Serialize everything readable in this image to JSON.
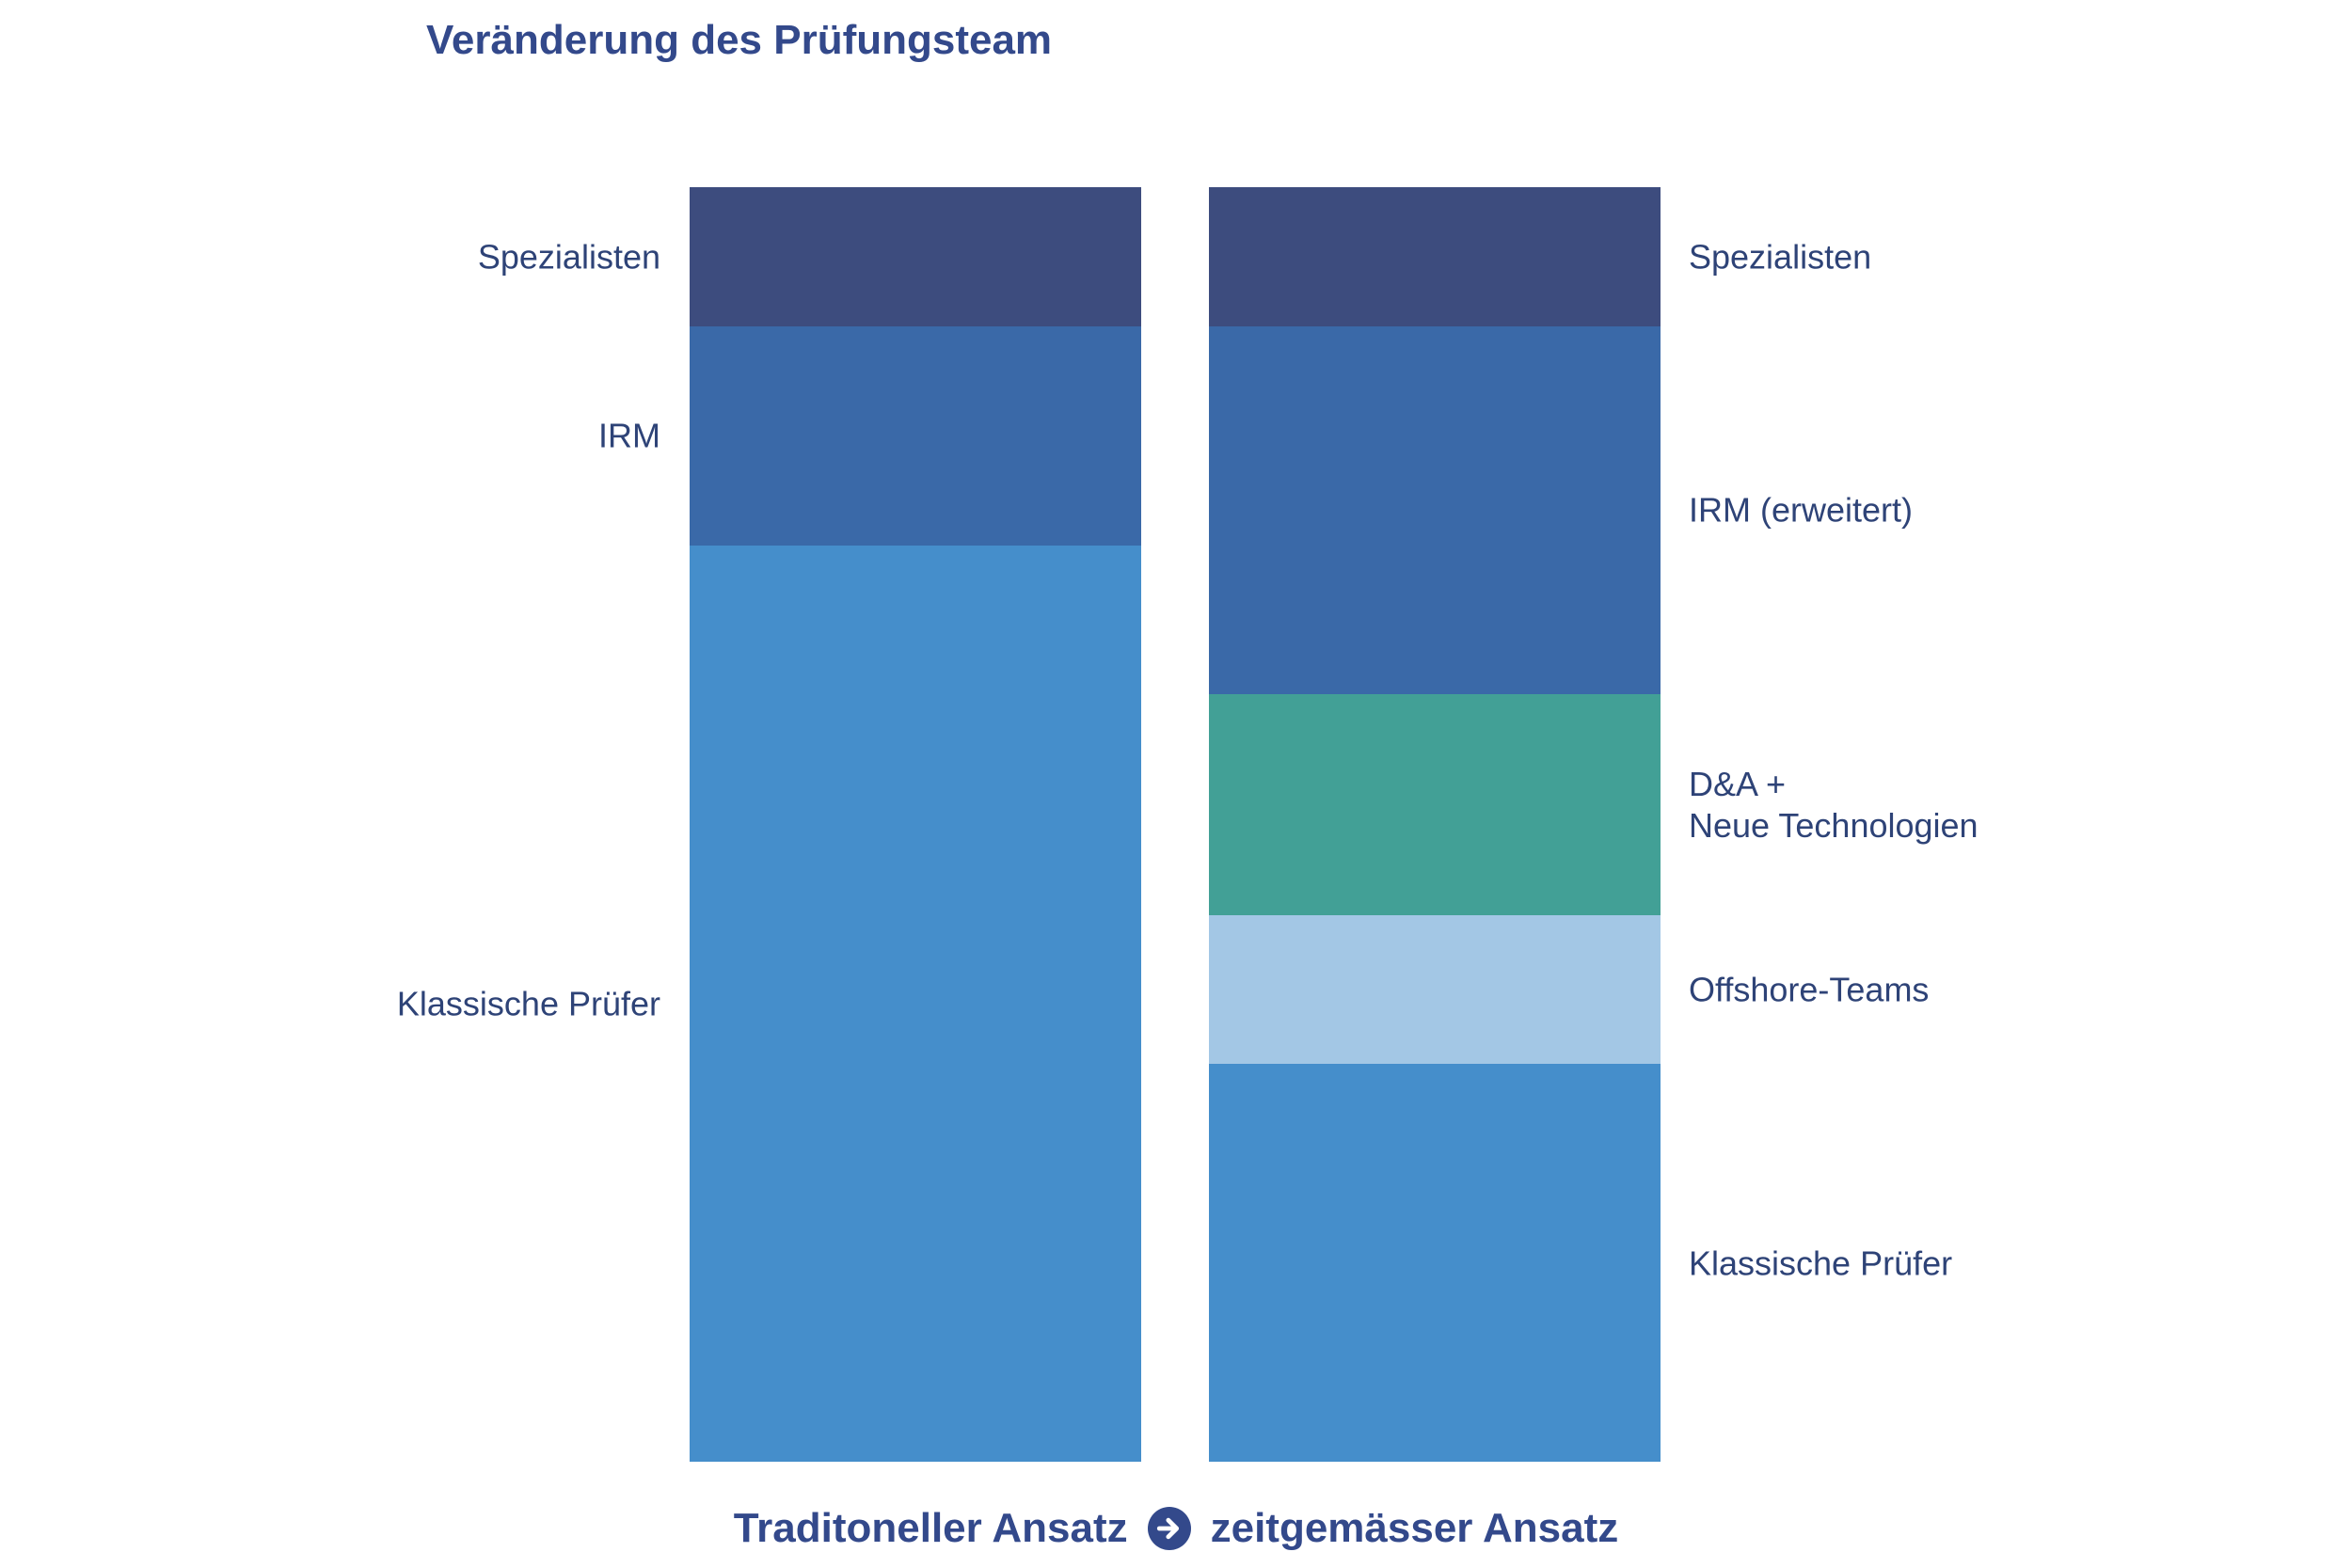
{
  "title": "Veränderung des Prüfungsteam",
  "caption": {
    "left_text": "Traditoneller Ansatz",
    "right_text": "zeitgemässer Ansatz",
    "arrow_icon": "circled-right-arrow"
  },
  "colors": {
    "background": "#FFFFFF",
    "title_text": "#33498B",
    "label_text": "#2E4377",
    "icon_circle": "#33498B",
    "icon_arrow": "#FFFFFF",
    "segment_dark_navy": "#3D4C7E",
    "segment_medium_blue": "#3A69A8",
    "segment_light_blue": "#458ECB",
    "segment_green": "#42A096",
    "segment_pale_blue": "#A3C7E5"
  },
  "chart_data": {
    "type": "bar",
    "subtype": "stacked-100-percent-columns",
    "title": "Veränderung des Prüfungsteam",
    "xlabel": "",
    "ylabel": "",
    "axes_visible": false,
    "gridlines": false,
    "legend_position": "segment-side-labels",
    "units": "percent-of-team",
    "categories": [
      "Traditoneller Ansatz",
      "zeitgemässer Ansatz"
    ],
    "columns": [
      {
        "key": "traditional",
        "name": "Traditoneller Ansatz",
        "label_side": "left",
        "segments": [
          {
            "label": "Spezialisten",
            "value": 10.9,
            "color": "#3D4C7E"
          },
          {
            "label": "IRM",
            "value": 17.2,
            "color": "#3A69A8"
          },
          {
            "label": "Klassische Prüfer",
            "value": 71.9,
            "color": "#458ECB"
          }
        ]
      },
      {
        "key": "modern",
        "name": "zeitgemässer Ansatz",
        "label_side": "right",
        "segments": [
          {
            "label": "Spezialisten",
            "value": 10.9,
            "color": "#3D4C7E"
          },
          {
            "label": "IRM (erweitert)",
            "value": 28.9,
            "color": "#3A69A8"
          },
          {
            "label": "D&A +\nNeue Technologien",
            "value": 17.3,
            "color": "#42A096"
          },
          {
            "label": "Offshore-Teams",
            "value": 11.7,
            "color": "#A3C7E5"
          },
          {
            "label": "Klassische Prüfer",
            "value": 31.2,
            "color": "#458ECB"
          }
        ]
      }
    ]
  }
}
